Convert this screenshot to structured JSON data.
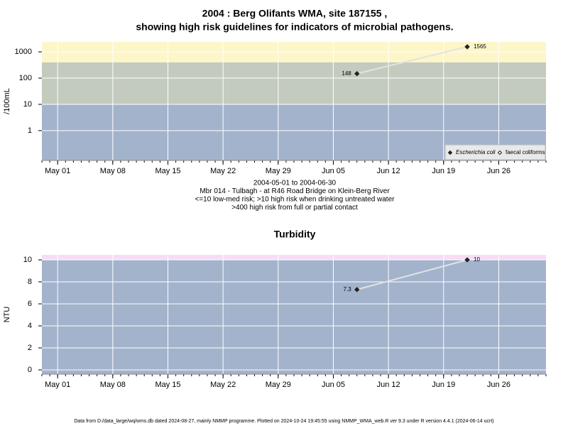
{
  "chart_data": [
    {
      "type": "line",
      "title": [
        "2004 : Berg Olifants WMA, site 187155 ,",
        "showing high risk guidelines for indicators of microbial pathogens."
      ],
      "y_label": "/100mL",
      "log_y": true,
      "ylim": [
        0.073,
        2400
      ],
      "yticks": [
        1,
        10,
        100,
        1000
      ],
      "thresholds": [
        10,
        400
      ],
      "band_colors": [
        "#a3b3cc",
        "#c3cbbe",
        "#fdf6c9"
      ],
      "grid": true,
      "xlim": [
        "2004-04-29",
        "2004-07-02"
      ],
      "xticks": [
        {
          "value": "2004-05-01",
          "label": "May 01"
        },
        {
          "value": "2004-05-08",
          "label": "May 08"
        },
        {
          "value": "2004-05-15",
          "label": "May 15"
        },
        {
          "value": "2004-05-22",
          "label": "May 22"
        },
        {
          "value": "2004-05-29",
          "label": "May 29"
        },
        {
          "value": "2004-06-05",
          "label": "Jun 05"
        },
        {
          "value": "2004-06-12",
          "label": "Jun 12"
        },
        {
          "value": "2004-06-19",
          "label": "Jun 19"
        },
        {
          "value": "2004-06-26",
          "label": "Jun 26"
        }
      ],
      "x": [
        "2004-06-08",
        "2004-06-22"
      ],
      "series": [
        {
          "name": "Escherichia coli",
          "marker": "filled",
          "color": "#222222",
          "values": [
            148,
            1565
          ]
        },
        {
          "name": "faecal coliforms",
          "marker": "open",
          "color": "#222222",
          "values": [
            null,
            null
          ]
        }
      ],
      "legend": "bottom-right",
      "notes": [
        "2004-05-01 to 2004-06-30",
        "Mbr 014 - Tulbagh - at R46 Road Bridge on Klein-Berg River",
        "<=10 low-med risk; >10 high risk when drinking untreated water",
        ">400 high risk from full or partial contact"
      ]
    },
    {
      "type": "line",
      "title": [
        "Turbidity"
      ],
      "y_label": "NTU",
      "log_y": false,
      "ylim": [
        -0.39,
        10.45
      ],
      "yticks": [
        0,
        2,
        4,
        6,
        8,
        10
      ],
      "thresholds": [
        10
      ],
      "band_colors": [
        "#a3b3cc",
        "#f8dcf6"
      ],
      "grid": true,
      "xlim": [
        "2004-04-29",
        "2004-07-02"
      ],
      "xticks": [
        {
          "value": "2004-05-01",
          "label": "May 01"
        },
        {
          "value": "2004-05-08",
          "label": "May 08"
        },
        {
          "value": "2004-05-15",
          "label": "May 15"
        },
        {
          "value": "2004-05-22",
          "label": "May 22"
        },
        {
          "value": "2004-05-29",
          "label": "May 29"
        },
        {
          "value": "2004-06-05",
          "label": "Jun 05"
        },
        {
          "value": "2004-06-12",
          "label": "Jun 12"
        },
        {
          "value": "2004-06-19",
          "label": "Jun 19"
        },
        {
          "value": "2004-06-26",
          "label": "Jun 26"
        }
      ],
      "x": [
        "2004-06-08",
        "2004-06-22"
      ],
      "series": [
        {
          "name": null,
          "marker": "filled",
          "color": "#222222",
          "values": [
            7.3,
            10
          ]
        }
      ]
    }
  ],
  "footer": "Data from D:/data_large/wq/wms.db dated 2024-08-27, mainly NMMP programme. Plotted on 2024-10-24 19:45:55 using NMMP_WMA_web.R ver 9.3 under R version 4.4.1 (2024-06-14 ucrt)"
}
